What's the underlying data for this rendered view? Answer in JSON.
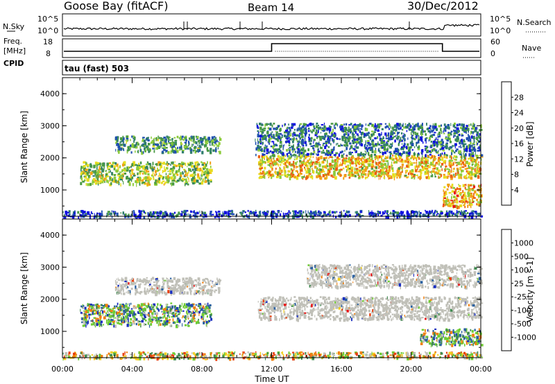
{
  "header": {
    "station": "Goose Bay (fitACF)",
    "beam": "Beam 14",
    "date": "30/Dec/2012"
  },
  "nsky_panel": {
    "left_label": "N.Sky",
    "right_label": "N.Search",
    "left_ticks": [
      "10^5",
      "10^0"
    ],
    "right_ticks": [
      "10^5",
      "10^0"
    ]
  },
  "freq_panel": {
    "left_label_1": "Freq.",
    "left_label_2": "[MHz]",
    "cpid_label": "CPID",
    "right_label": "Nave",
    "left_ticks": [
      "18",
      "8"
    ],
    "right_ticks": [
      "60",
      "0"
    ],
    "freq_segments": [
      {
        "start_h": 0,
        "end_h": 12,
        "value": "low"
      },
      {
        "start_h": 12,
        "end_h": 21.8,
        "value": "high"
      },
      {
        "start_h": 21.8,
        "end_h": 24,
        "value": "low"
      }
    ]
  },
  "cpid_text": "tau (fast) 503",
  "time_axis": {
    "xlabel": "Time UT",
    "ticks": [
      "00:00",
      "04:00",
      "08:00",
      "12:00",
      "16:00",
      "20:00",
      "00:00"
    ],
    "tick_hours": [
      0,
      4,
      8,
      12,
      16,
      20,
      24
    ]
  },
  "chart_data": [
    {
      "type": "heatmap",
      "ylabel": "Slant Range [km]",
      "ylim": [
        180,
        4500
      ],
      "yticks": [
        1000,
        2000,
        3000,
        4000
      ],
      "ytick_labels": [
        "1000",
        "2000",
        "3000",
        "4000"
      ],
      "xlim": [
        0,
        24
      ],
      "colorbar": {
        "label": "Power [dB]",
        "tick_labels": [
          "4",
          "8",
          "12",
          "16",
          "20",
          "24",
          "28"
        ],
        "colors": [
          "#1010e0",
          "#2050b0",
          "#2e7d6a",
          "#4a9a44",
          "#8ccb3a",
          "#e8dd20",
          "#f0a018",
          "#ec6010",
          "#e81818"
        ]
      },
      "regions": [
        {
          "t0": 3.0,
          "t1": 9.0,
          "r0": 2200,
          "r1": 2700,
          "level": 0.35
        },
        {
          "t0": 1.0,
          "t1": 8.5,
          "r0": 1200,
          "r1": 1900,
          "level": 0.5
        },
        {
          "t0": 11.2,
          "t1": 24.0,
          "r0": 1400,
          "r1": 2100,
          "level": 0.65
        },
        {
          "t0": 11.0,
          "t1": 24.0,
          "r0": 2100,
          "r1": 3100,
          "level": 0.25
        },
        {
          "t0": 21.8,
          "t1": 24.0,
          "r0": 500,
          "r1": 1200,
          "level": 0.7
        },
        {
          "t0": 0.0,
          "t1": 24.0,
          "r0": 180,
          "r1": 380,
          "level": 0.15
        }
      ]
    },
    {
      "type": "heatmap",
      "ylabel": "Slant Range [km]",
      "ylim": [
        180,
        4500
      ],
      "yticks": [
        1000,
        2000,
        3000,
        4000
      ],
      "ytick_labels": [
        "1000",
        "2000",
        "3000",
        "4000"
      ],
      "xlim": [
        0,
        24
      ],
      "colorbar": {
        "label": "Velocity [m s-1]",
        "tick_labels": [
          "1000",
          "500",
          "100",
          "25",
          "-25",
          "-100",
          "-500",
          "-1000"
        ],
        "colors": [
          "#1a2fc0",
          "#2a60a0",
          "#3f8a50",
          "#6fcc33",
          "#c0c0b8",
          "#f2d020",
          "#f08010",
          "#e84010",
          "#e81818"
        ]
      },
      "regions": [
        {
          "t0": 3.0,
          "t1": 9.0,
          "r0": 2200,
          "r1": 2700,
          "class": "gs"
        },
        {
          "t0": 1.0,
          "t1": 8.5,
          "r0": 1200,
          "r1": 1900,
          "class": "pos"
        },
        {
          "t0": 11.2,
          "t1": 24.0,
          "r0": 1400,
          "r1": 2100,
          "class": "gs"
        },
        {
          "t0": 14.0,
          "t1": 24.0,
          "r0": 2400,
          "r1": 3100,
          "class": "gs"
        },
        {
          "t0": 20.5,
          "t1": 24.0,
          "r0": 600,
          "r1": 1100,
          "class": "pos"
        },
        {
          "t0": 0.0,
          "t1": 24.0,
          "r0": 180,
          "r1": 380,
          "class": "mix"
        }
      ]
    }
  ]
}
